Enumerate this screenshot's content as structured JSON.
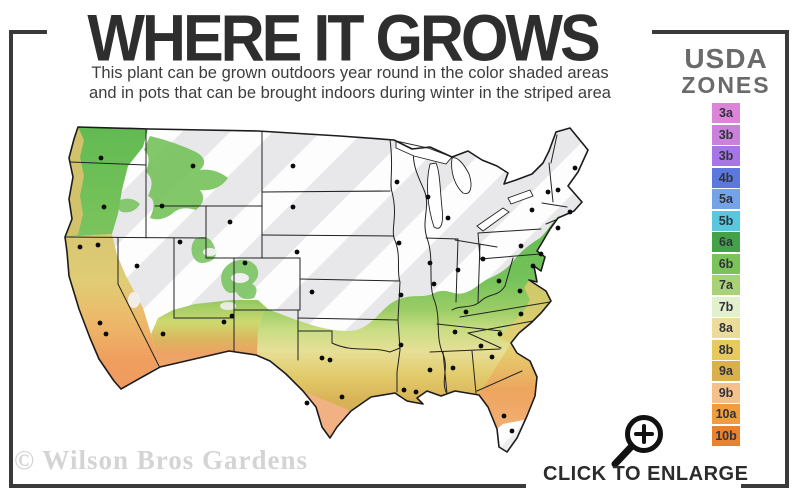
{
  "header": {
    "title": "WHERE IT GROWS",
    "subtitle_line1": "This plant can be grown outdoors year round in the color shaded areas",
    "subtitle_line2": "and in pots that can be brought indoors during winter in the striped area"
  },
  "legend": {
    "title_line1": "USDA",
    "title_line2": "ZONES",
    "zones": [
      {
        "label": "3a",
        "color": "#dc85d8"
      },
      {
        "label": "3b",
        "color": "#c981d9"
      },
      {
        "label": "3b",
        "color": "#a775e6"
      },
      {
        "label": "4b",
        "color": "#5c77de"
      },
      {
        "label": "5a",
        "color": "#74a3e8"
      },
      {
        "label": "5b",
        "color": "#57c8dd"
      },
      {
        "label": "6a",
        "color": "#44a148"
      },
      {
        "label": "6b",
        "color": "#7cc25b"
      },
      {
        "label": "7a",
        "color": "#a9d177"
      },
      {
        "label": "7b",
        "color": "#e2f0ce"
      },
      {
        "label": "8a",
        "color": "#ebdc9b"
      },
      {
        "label": "8b",
        "color": "#e7c95e"
      },
      {
        "label": "9a",
        "color": "#d9b04c"
      },
      {
        "label": "9b",
        "color": "#f4c08c"
      },
      {
        "label": "10a",
        "color": "#f09d3e"
      },
      {
        "label": "10b",
        "color": "#e8822f"
      }
    ]
  },
  "map": {
    "striped_area_color": "#e8e8ea",
    "stripe_color": "#ffffff",
    "outline_color": "#1c1c1c",
    "dot_color": "#0a0a0a"
  },
  "footer": {
    "watermark": "© Wilson Bros Gardens",
    "enlarge_label": "CLICK TO ENLARGE",
    "enlarge_icon": "magnifier-plus-icon"
  },
  "frame_color": "#3a3a3a"
}
